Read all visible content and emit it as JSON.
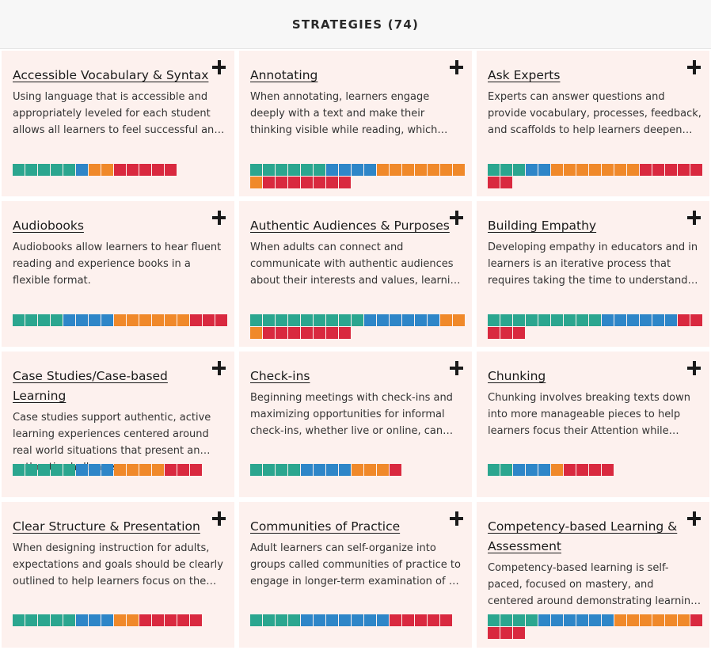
{
  "header": {
    "title": "STRATEGIES (74)"
  },
  "colors": {
    "teal": "#2ba68f",
    "blue": "#2e86c8",
    "orange": "#f0892a",
    "red": "#d9293f",
    "card_bg": "#fdf1ee"
  },
  "cards": [
    {
      "title": "Accessible Vocabulary & Syntax",
      "desc": "Using language that is accessible and appropriately leveled for each student allows all learners to feel successful and engaged in learning.",
      "bars": {
        "teal": 5,
        "blue": 1,
        "orange": 2,
        "red": 5
      }
    },
    {
      "title": "Annotating",
      "desc": "When annotating, learners engage deeply with a text and make their thinking visible while reading, which supports comprehension and reflection.",
      "bars": {
        "teal": 6,
        "blue": 4,
        "orange": 8,
        "red": 7
      }
    },
    {
      "title": "Ask Experts",
      "desc": "Experts can answer questions and provide vocabulary, processes, feedback, and scaffolds to help learners deepen their understanding.",
      "bars": {
        "teal": 3,
        "blue": 2,
        "orange": 7,
        "red": 7
      }
    },
    {
      "title": "Audiobooks",
      "desc": "Audiobooks allow learners to hear fluent reading and experience books in a flexible format.",
      "bars": {
        "teal": 4,
        "blue": 4,
        "orange": 6,
        "red": 3
      }
    },
    {
      "title": "Authentic Audiences & Purposes",
      "desc": "When adults can connect and communicate with authentic audiences about their interests and values, learning becomes more meaningful.",
      "bars": {
        "teal": 9,
        "blue": 6,
        "orange": 3,
        "red": 7
      }
    },
    {
      "title": "Building Empathy",
      "desc": "Developing empathy in educators and in learners is an iterative process that requires taking the time to understand others.",
      "bars": {
        "teal": 9,
        "blue": 6,
        "orange": 0,
        "red": 5
      }
    },
    {
      "title": "Case Studies/Case-based Learning",
      "desc": "Case studies support authentic, active learning experiences centered around real world situations that present an authentic challenge.",
      "bars": {
        "teal": 5,
        "blue": 3,
        "orange": 4,
        "red": 3
      }
    },
    {
      "title": "Check-ins",
      "desc": "Beginning meetings with check-ins and maximizing opportunities for informal check-ins, whether live or online, can build community.",
      "bars": {
        "teal": 4,
        "blue": 4,
        "orange": 3,
        "red": 1
      }
    },
    {
      "title": "Chunking",
      "desc": "Chunking involves breaking texts down into more manageable pieces to help learners focus their Attention while reading.",
      "bars": {
        "teal": 2,
        "blue": 3,
        "orange": 1,
        "red": 4
      }
    },
    {
      "title": "Clear Structure & Presentation",
      "desc": "When designing instruction for adults, expectations and goals should be clearly outlined to help learners focus on the content.",
      "bars": {
        "teal": 5,
        "blue": 3,
        "orange": 2,
        "red": 5
      }
    },
    {
      "title": "Communities of Practice",
      "desc": "Adult learners can self-organize into groups called communities of practice to engage in longer-term examination of a topic.",
      "bars": {
        "teal": 4,
        "blue": 7,
        "orange": 0,
        "red": 5
      }
    },
    {
      "title": "Competency-based Learning & Assessment",
      "desc": "Competency-based learning is self-paced, focused on mastery, and centered around demonstrating learning progress.",
      "bars": {
        "teal": 4,
        "blue": 6,
        "orange": 6,
        "red": 4
      }
    }
  ]
}
